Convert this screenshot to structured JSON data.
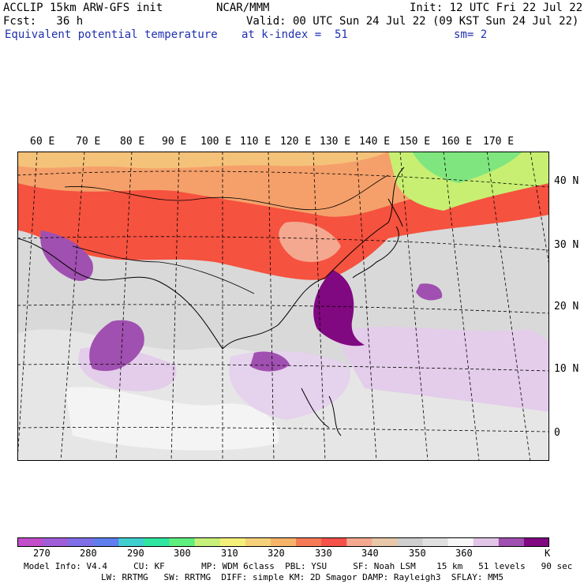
{
  "header": {
    "line1_left": "ACCLIP 15km ARW-GFS init",
    "line1_center": "NCAR/MMM",
    "line1_right": "Init: 12 UTC Fri 22 Jul 22",
    "line2_left": "Fcst:   36 h",
    "line2_right": "Valid: 00 UTC Sun 24 Jul 22 (09 KST Sun 24 Jul 22)",
    "line3_left": "Equivalent potential temperature",
    "line3_center": "at k-index =  51",
    "line3_right": "sm= 2"
  },
  "map": {
    "lon_labels": [
      "60 E",
      "70 E",
      "80 E",
      "90 E",
      "100 E",
      "110 E",
      "120 E",
      "130 E",
      "140 E",
      "150 E",
      "160 E",
      "170 E"
    ],
    "lat_labels": [
      "40 N",
      "30 N",
      "20 N",
      "10 N",
      "0"
    ]
  },
  "colorbar": {
    "colors": [
      "#c24fc9",
      "#a05fd9",
      "#7f6fe6",
      "#5f7fef",
      "#3fcfcf",
      "#2fe6a0",
      "#5fef7f",
      "#c7f07a",
      "#f5f07a",
      "#f5d27a",
      "#f5b46a",
      "#f57a55",
      "#f5504a",
      "#f5a890",
      "#e8c8a8",
      "#cfcfcf",
      "#e0e0e0",
      "#f7f7f7",
      "#e2c6e8",
      "#a050b0",
      "#800880"
    ],
    "labels": [
      "270",
      "280",
      "290",
      "300",
      "310",
      "320",
      "330",
      "340",
      "350",
      "360",
      "K"
    ]
  },
  "footer": {
    "line1": "Model Info: V4.4     CU: KF       MP: WDM 6class  PBL: YSU     SF: Noah LSM    15 km   51 levels   90 sec",
    "line2": "LW: RRTMG   SW: RRTMG  DIFF: simple KM: 2D Smagor DAMP: Rayleigh3  SFLAY: MM5"
  }
}
